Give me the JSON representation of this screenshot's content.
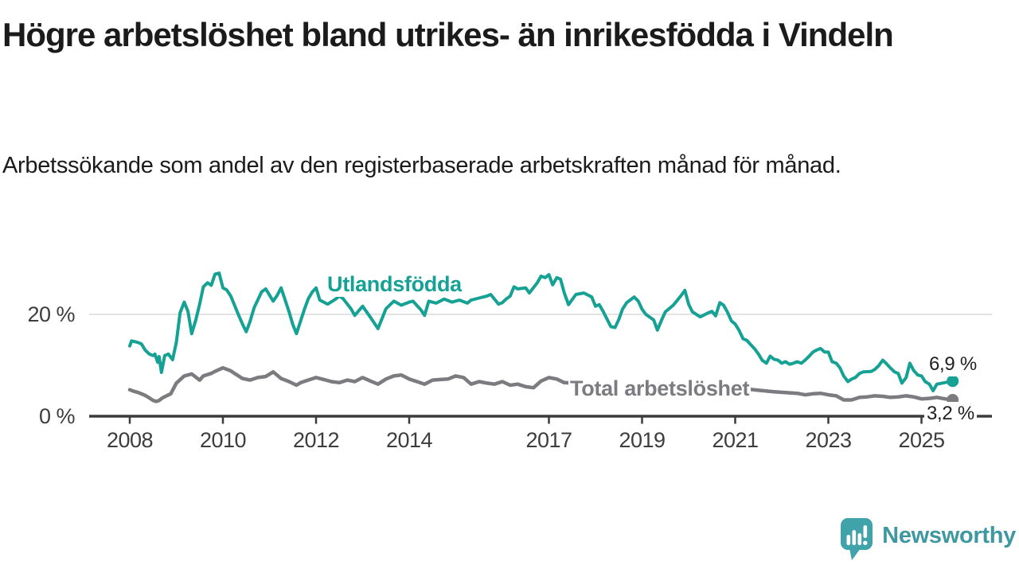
{
  "header": {
    "title": "Högre arbetslöshet bland utrikes- än inrikesfödda i Vindeln",
    "subtitle": "Arbetssökande som andel av den registerbaserade arbetskraften månad för månad."
  },
  "chart_data": {
    "type": "line",
    "title": "Högre arbetslöshet bland utrikes- än inrikesfödda i Vindeln",
    "subtitle": "Arbetssökande som andel av den registerbaserade arbetskraften månad för månad.",
    "unit": "%",
    "grid": "horizontal-only",
    "legend_position": "inline-labels-on-lines",
    "colors": {
      "axis": "#3b3b3b",
      "gridline": "#dadada",
      "background": "#ffffff"
    },
    "y_axis": {
      "ticks": [
        {
          "label": "20 %",
          "value": 20
        },
        {
          "label": "0 %",
          "value": 0
        }
      ],
      "gridlines": [
        20
      ],
      "range": [
        0,
        30
      ]
    },
    "x_axis": {
      "ticks": [
        2008,
        2010,
        2012,
        2014,
        2017,
        2019,
        2021,
        2023,
        2025
      ],
      "range_years": [
        2007.2,
        2025.9
      ]
    },
    "series": [
      {
        "name": "Utlandsfödda",
        "color": "#16a195",
        "end_label": "6,9 %",
        "end_value": 6.9,
        "x": [
          2008.0,
          2008.04,
          2008.17,
          2008.25,
          2008.33,
          2008.42,
          2008.5,
          2008.54,
          2008.6,
          2008.63,
          2008.68,
          2008.75,
          2008.83,
          2008.92,
          2009.0,
          2009.08,
          2009.17,
          2009.25,
          2009.33,
          2009.42,
          2009.5,
          2009.58,
          2009.67,
          2009.75,
          2009.83,
          2009.92,
          2010.0,
          2010.08,
          2010.17,
          2010.33,
          2010.42,
          2010.5,
          2010.58,
          2010.67,
          2010.83,
          2010.92,
          2011.08,
          2011.17,
          2011.25,
          2011.42,
          2011.5,
          2011.58,
          2011.75,
          2011.83,
          2011.92,
          2012.0,
          2012.08,
          2012.25,
          2012.42,
          2012.5,
          2012.58,
          2012.75,
          2012.83,
          2013.0,
          2013.17,
          2013.33,
          2013.5,
          2013.67,
          2013.83,
          2014.0,
          2014.08,
          2014.25,
          2014.33,
          2014.42,
          2014.58,
          2014.75,
          2014.92,
          2015.08,
          2015.25,
          2015.33,
          2015.5,
          2015.67,
          2015.75,
          2015.92,
          2016.0,
          2016.08,
          2016.17,
          2016.25,
          2016.33,
          2016.5,
          2016.58,
          2016.75,
          2016.83,
          2016.92,
          2017.0,
          2017.08,
          2017.17,
          2017.25,
          2017.33,
          2017.42,
          2017.58,
          2017.75,
          2017.92,
          2018.0,
          2018.08,
          2018.17,
          2018.33,
          2018.42,
          2018.5,
          2018.58,
          2018.67,
          2018.83,
          2018.92,
          2019.0,
          2019.08,
          2019.25,
          2019.33,
          2019.42,
          2019.5,
          2019.67,
          2019.83,
          2019.92,
          2020.0,
          2020.08,
          2020.25,
          2020.42,
          2020.5,
          2020.58,
          2020.67,
          2020.75,
          2020.83,
          2020.92,
          2021.0,
          2021.08,
          2021.17,
          2021.25,
          2021.33,
          2021.42,
          2021.5,
          2021.58,
          2021.67,
          2021.75,
          2021.83,
          2021.92,
          2022.0,
          2022.08,
          2022.17,
          2022.25,
          2022.33,
          2022.42,
          2022.5,
          2022.58,
          2022.67,
          2022.75,
          2022.83,
          2022.92,
          2023.0,
          2023.08,
          2023.17,
          2023.25,
          2023.33,
          2023.42,
          2023.5,
          2023.58,
          2023.67,
          2023.75,
          2023.92,
          2024.0,
          2024.08,
          2024.17,
          2024.25,
          2024.33,
          2024.42,
          2024.5,
          2024.58,
          2024.67,
          2024.75,
          2024.83,
          2024.92,
          2025.0,
          2025.08,
          2025.17,
          2025.25,
          2025.33,
          2025.5,
          2025.67
        ],
        "values": [
          13.8,
          14.8,
          14.5,
          14.2,
          13.0,
          12.2,
          11.9,
          12.2,
          10.6,
          11.7,
          8.6,
          11.9,
          12.2,
          11.1,
          14.5,
          20.3,
          22.4,
          20.6,
          16.2,
          19.0,
          22.0,
          25.4,
          26.2,
          25.7,
          27.9,
          28.1,
          25.2,
          24.8,
          23.6,
          20.0,
          18.1,
          16.6,
          18.5,
          21.3,
          24.4,
          25.0,
          22.6,
          23.8,
          25.2,
          20.5,
          18.0,
          16.2,
          21.0,
          23.0,
          24.4,
          25.2,
          22.8,
          22.0,
          23.0,
          23.6,
          23.1,
          21.1,
          19.8,
          21.6,
          19.4,
          17.2,
          21.1,
          22.6,
          21.8,
          22.4,
          22.6,
          20.9,
          19.8,
          22.6,
          22.2,
          23.0,
          22.4,
          22.8,
          22.2,
          22.8,
          23.2,
          23.6,
          23.9,
          22.0,
          22.3,
          23.0,
          23.6,
          25.4,
          25.0,
          25.2,
          24.2,
          26.2,
          27.5,
          27.2,
          27.8,
          25.8,
          27.2,
          26.9,
          24.2,
          21.9,
          23.9,
          24.2,
          23.4,
          21.6,
          21.9,
          20.5,
          17.6,
          17.4,
          19.0,
          21.0,
          22.3,
          23.4,
          22.6,
          21.0,
          20.0,
          18.9,
          16.9,
          18.9,
          20.5,
          21.8,
          23.6,
          24.7,
          22.0,
          20.5,
          19.5,
          20.3,
          20.6,
          19.7,
          22.3,
          21.8,
          20.5,
          18.7,
          18.1,
          16.9,
          15.2,
          14.9,
          14.1,
          13.2,
          12.2,
          11.0,
          10.4,
          11.8,
          11.2,
          11.0,
          10.4,
          10.7,
          10.2,
          10.4,
          10.7,
          10.4,
          11.0,
          11.7,
          12.6,
          13.0,
          13.3,
          12.6,
          12.6,
          10.7,
          10.4,
          9.5,
          7.9,
          6.8,
          7.3,
          7.6,
          8.4,
          8.7,
          8.8,
          9.2,
          9.9,
          11.0,
          10.3,
          9.5,
          8.7,
          8.4,
          6.5,
          7.6,
          10.4,
          9.0,
          8.1,
          7.9,
          6.8,
          6.3,
          5.0,
          6.3,
          6.6,
          6.9
        ]
      },
      {
        "name": "Total arbetslöshet",
        "color": "#7b7b80",
        "end_label": "3,2 %",
        "end_value": 3.2,
        "x": [
          2008.0,
          2008.08,
          2008.17,
          2008.25,
          2008.33,
          2008.42,
          2008.5,
          2008.57,
          2008.63,
          2008.7,
          2008.79,
          2008.88,
          2009.0,
          2009.17,
          2009.33,
          2009.5,
          2009.58,
          2009.75,
          2009.83,
          2010.0,
          2010.17,
          2010.25,
          2010.42,
          2010.58,
          2010.75,
          2010.92,
          2011.08,
          2011.25,
          2011.42,
          2011.58,
          2011.67,
          2011.83,
          2012.0,
          2012.17,
          2012.33,
          2012.5,
          2012.67,
          2012.83,
          2013.0,
          2013.17,
          2013.33,
          2013.5,
          2013.67,
          2013.83,
          2014.0,
          2014.17,
          2014.33,
          2014.5,
          2014.67,
          2014.83,
          2015.0,
          2015.17,
          2015.33,
          2015.5,
          2015.67,
          2015.83,
          2016.0,
          2016.17,
          2016.33,
          2016.5,
          2016.67,
          2016.83,
          2017.0,
          2017.17,
          2017.33,
          2017.67,
          2018.0,
          2018.5,
          2019.0,
          2019.5,
          2020.0,
          2020.5,
          2021.0,
          2021.5,
          2021.83,
          2022.17,
          2022.33,
          2022.5,
          2022.67,
          2022.83,
          2023.0,
          2023.17,
          2023.33,
          2023.5,
          2023.67,
          2023.83,
          2024.0,
          2024.17,
          2024.33,
          2024.5,
          2024.67,
          2024.83,
          2025.0,
          2025.17,
          2025.33,
          2025.5,
          2025.67
        ],
        "values": [
          5.2,
          4.9,
          4.7,
          4.4,
          4.1,
          3.6,
          3.1,
          2.9,
          3.1,
          3.6,
          4.0,
          4.4,
          6.5,
          7.9,
          8.3,
          7.1,
          7.9,
          8.4,
          8.8,
          9.5,
          8.9,
          8.4,
          7.4,
          7.1,
          7.6,
          7.8,
          8.7,
          7.4,
          6.8,
          6.1,
          6.6,
          7.1,
          7.6,
          7.2,
          6.8,
          6.6,
          7.1,
          6.8,
          7.6,
          6.9,
          6.3,
          7.3,
          7.9,
          8.1,
          7.3,
          6.8,
          6.3,
          7.1,
          7.2,
          7.3,
          7.9,
          7.6,
          6.3,
          6.8,
          6.5,
          6.3,
          6.8,
          6.1,
          6.3,
          5.8,
          5.6,
          6.9,
          7.6,
          7.3,
          6.6,
          6.4,
          6.2,
          6.0,
          5.8,
          5.6,
          5.9,
          6.1,
          5.6,
          5.1,
          4.8,
          4.6,
          4.5,
          4.2,
          4.4,
          4.5,
          4.2,
          4.0,
          3.2,
          3.2,
          3.7,
          3.8,
          4.0,
          3.9,
          3.7,
          3.8,
          4.0,
          3.8,
          3.4,
          3.5,
          3.7,
          3.4,
          3.2
        ]
      }
    ]
  },
  "branding": {
    "logo_text": "Newsworthy",
    "logo_text_color": "#3d98a0",
    "logo_icon_color": "#3fa3a9",
    "logo_icon": "speech-bubble-bar-chart-icon"
  }
}
